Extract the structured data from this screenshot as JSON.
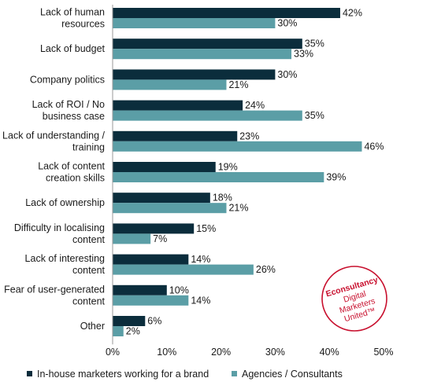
{
  "chart_data": {
    "type": "bar",
    "orientation": "horizontal",
    "categories": [
      [
        "Lack of human",
        "resources"
      ],
      [
        "Lack of budget"
      ],
      [
        "Company politics"
      ],
      [
        "Lack of ROI / No",
        "business case"
      ],
      [
        "Lack of understanding /",
        "training"
      ],
      [
        "Lack of content",
        "creation skills"
      ],
      [
        "Lack of ownership"
      ],
      [
        "Difficulty in localising",
        "content"
      ],
      [
        "Lack of interesting",
        "content"
      ],
      [
        "Fear of user-generated",
        "content"
      ],
      [
        "Other"
      ]
    ],
    "series": [
      {
        "name": "In-house marketers working for a brand",
        "color": "#0b2d3c",
        "values": [
          42,
          35,
          30,
          24,
          23,
          19,
          18,
          15,
          14,
          10,
          6
        ]
      },
      {
        "name": "Agencies / Consultants",
        "color": "#5b9ea6",
        "values": [
          30,
          33,
          21,
          35,
          46,
          39,
          21,
          7,
          26,
          14,
          2
        ]
      }
    ],
    "value_suffix": "%",
    "xlim": [
      0,
      50
    ],
    "xticks": [
      "0%",
      "10%",
      "20%",
      "30%",
      "40%",
      "50%"
    ],
    "grid": false,
    "legend_position": "bottom"
  },
  "logo": {
    "lines": [
      "Econsultancy",
      "Digital",
      "Marketers",
      "United™"
    ],
    "color": "#c8102e"
  }
}
